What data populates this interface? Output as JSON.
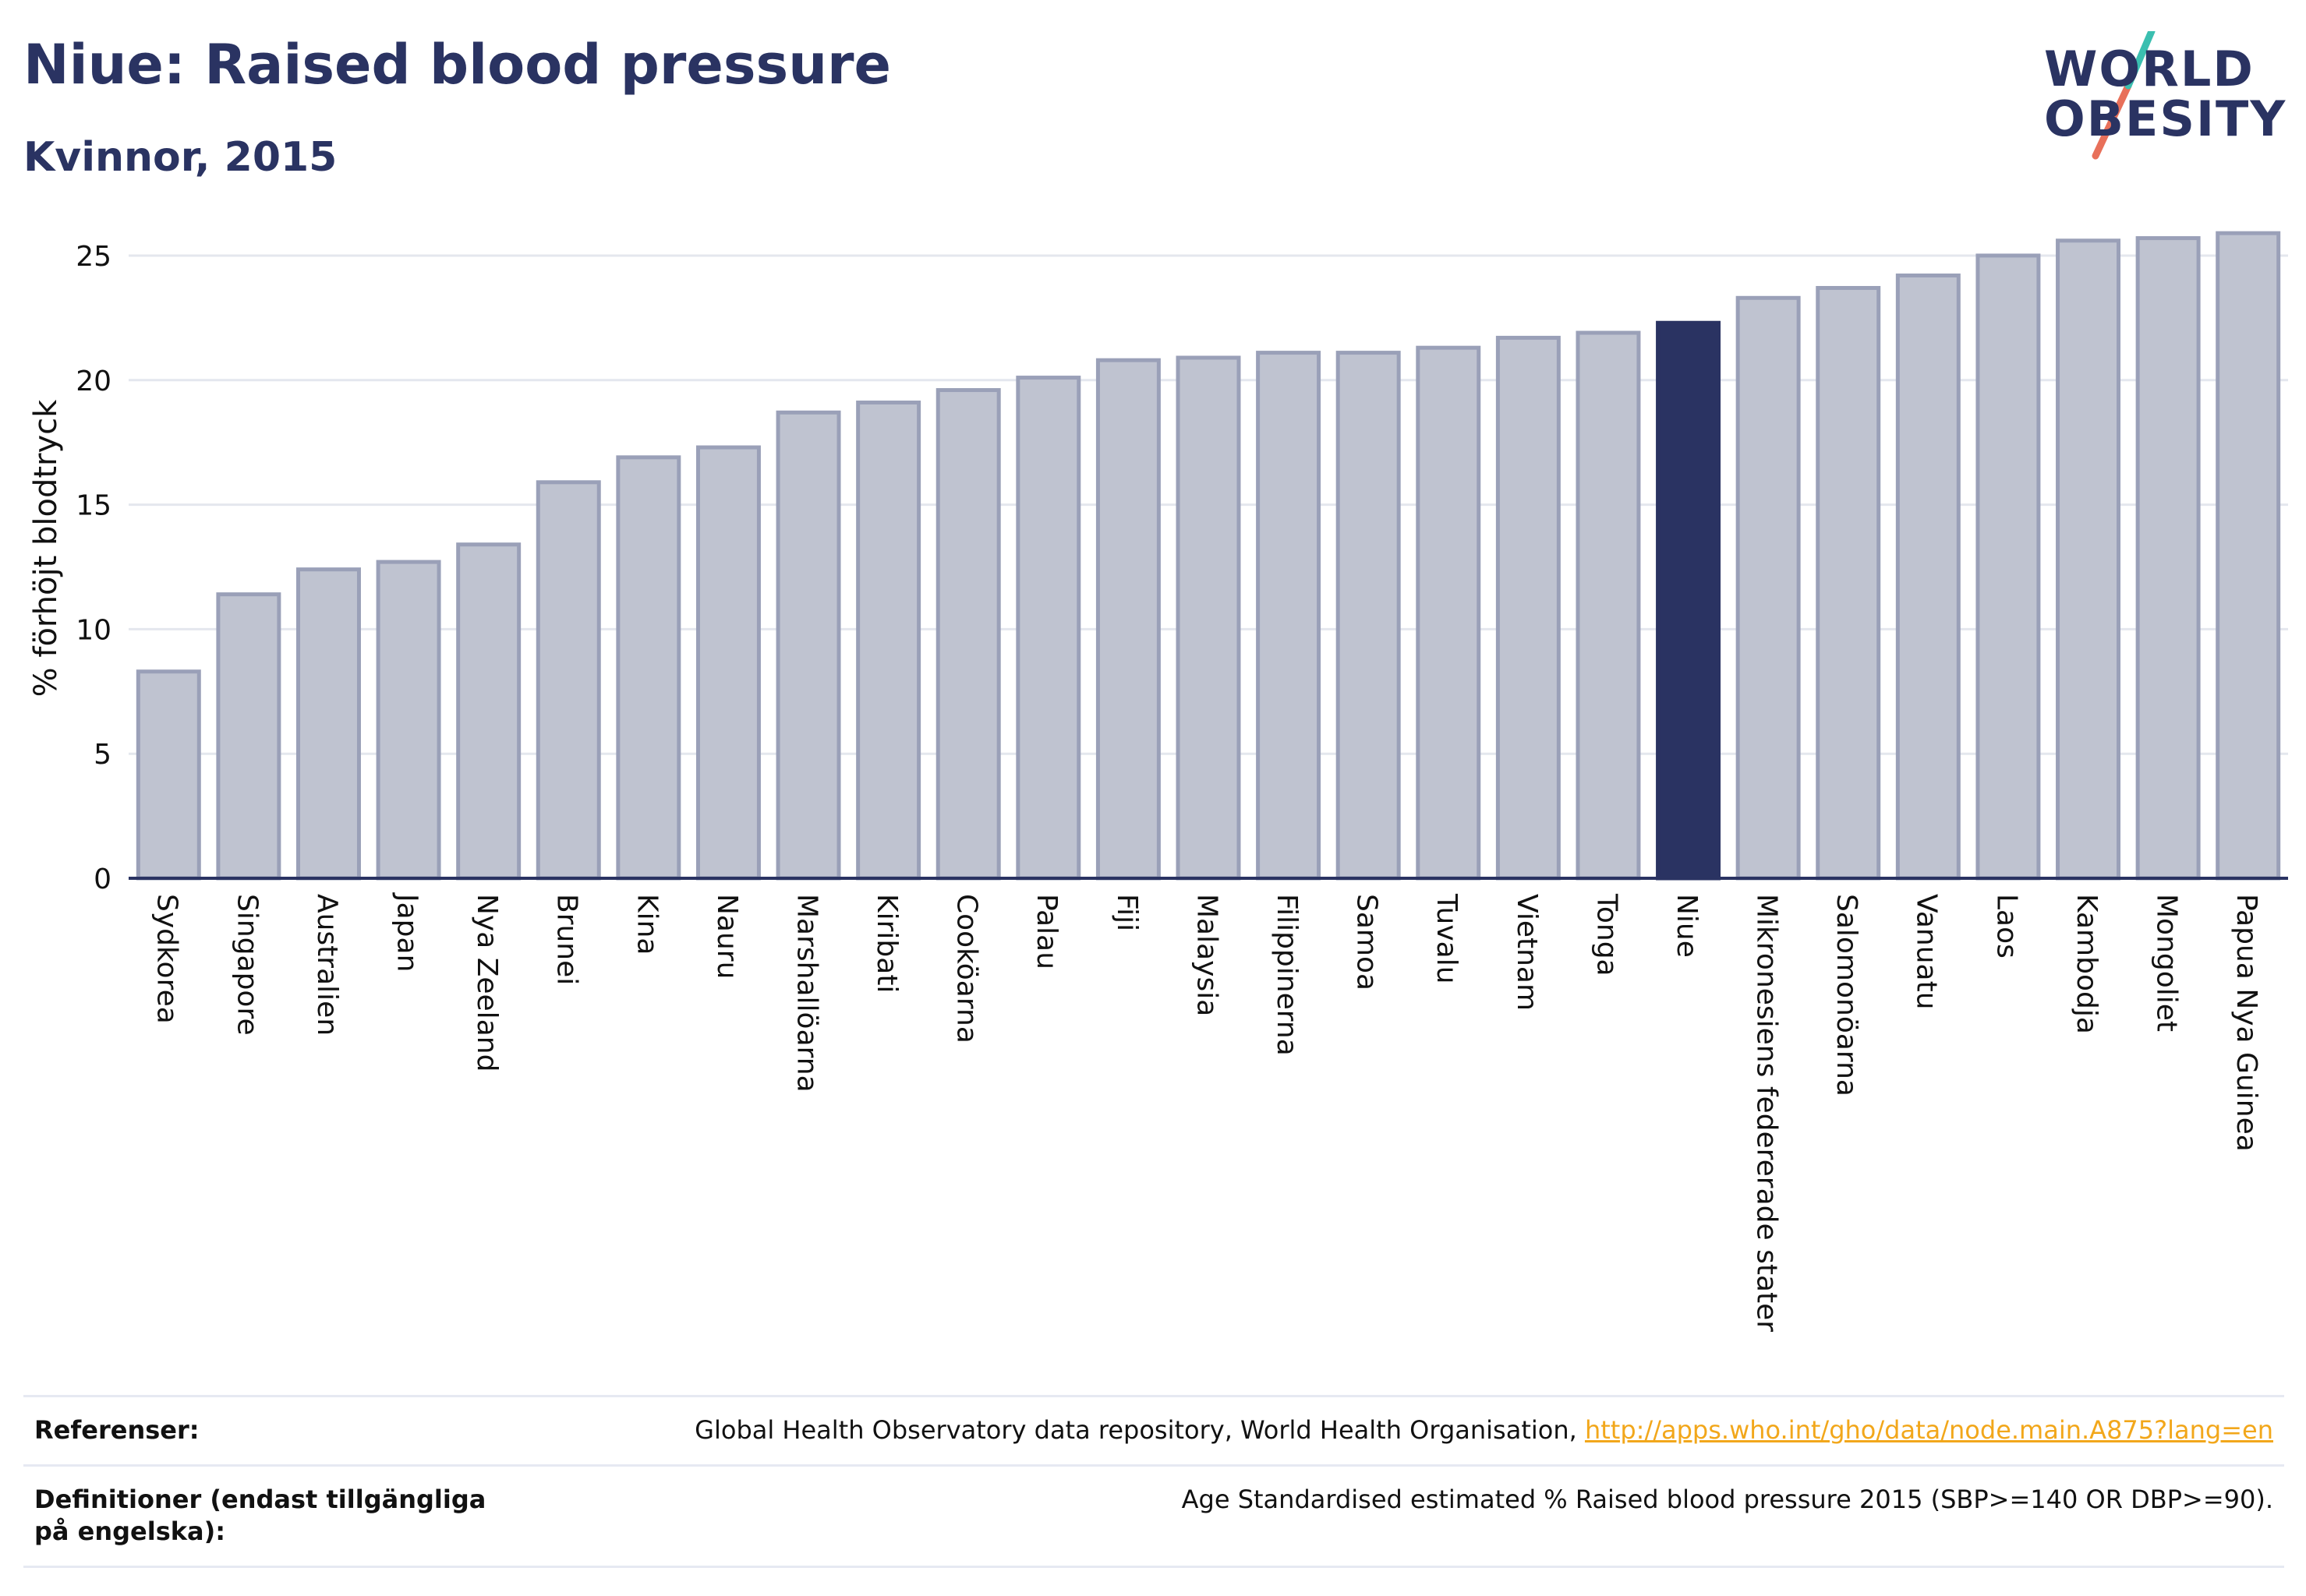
{
  "header": {
    "title": "Niue: Raised blood pressure",
    "subtitle": "Kvinnor, 2015"
  },
  "logo": {
    "line1": "WORLD",
    "line2": "OBESITY",
    "colors": {
      "text": "#2a3362",
      "accent_teal": "#3bbfb0",
      "accent_red": "#e8705a"
    }
  },
  "chart_data": {
    "type": "bar",
    "title": "Niue: Raised blood pressure",
    "subtitle": "Kvinnor, 2015",
    "xlabel": "",
    "ylabel": "% förhöjt blodtryck",
    "ylim": [
      0,
      26.5
    ],
    "yticks": [
      0,
      5,
      10,
      15,
      20,
      25
    ],
    "grid": true,
    "highlight": "Niue",
    "colors": {
      "bar": "#bfc3d0",
      "bar_edge": "#9aa0b8",
      "highlight": "#2a3362",
      "grid": "#e4e7ee",
      "axis": "#2a3362"
    },
    "categories": [
      "Sydkorea",
      "Singapore",
      "Australien",
      "Japan",
      "Nya Zeeland",
      "Brunei",
      "Kina",
      "Nauru",
      "Marshallöarna",
      "Kiribati",
      "Cooköarna",
      "Palau",
      "Fiji",
      "Malaysia",
      "Filippinerna",
      "Samoa",
      "Tuvalu",
      "Vietnam",
      "Tonga",
      "Niue",
      "Mikronesiens federerade stater",
      "Salomonöarna",
      "Vanuatu",
      "Laos",
      "Kambodja",
      "Mongoliet",
      "Papua Nya Guinea"
    ],
    "values": [
      8.3,
      11.4,
      12.4,
      12.7,
      13.4,
      15.9,
      16.9,
      17.3,
      18.7,
      19.1,
      19.6,
      20.1,
      20.8,
      20.9,
      21.1,
      21.1,
      21.3,
      21.7,
      21.9,
      22.3,
      23.3,
      23.7,
      24.2,
      25.0,
      25.6,
      25.7,
      25.9
    ]
  },
  "references": {
    "label": "Referenser:",
    "text": "Global Health Observatory data repository, World Health Organisation, ",
    "link": "http://apps.who.int/gho/data/node.main.A875?lang=en"
  },
  "definitions": {
    "label": "Definitioner (endast tillgängliga på engelska):",
    "text": "Age Standardised estimated % Raised blood pressure 2015 (SBP>=140 OR DBP>=90)."
  }
}
